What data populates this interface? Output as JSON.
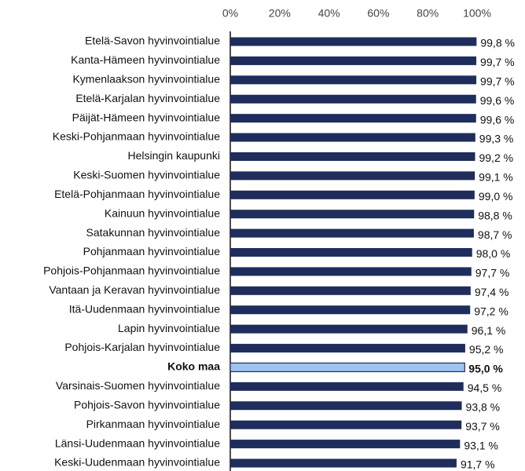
{
  "chart_data": {
    "type": "bar",
    "orientation": "horizontal",
    "categories": [
      "Etelä-Savon hyvinvointialue",
      "Kanta-Hämeen hyvinvointialue",
      "Kymenlaakson hyvinvointialue",
      "Etelä-Karjalan hyvinvointialue",
      "Päijät-Hämeen hyvinvointialue",
      "Keski-Pohjanmaan hyvinvointialue",
      "Helsingin kaupunki",
      "Keski-Suomen hyvinvointialue",
      "Etelä-Pohjanmaan hyvinvointialue",
      "Kainuun hyvinvointialue",
      "Satakunnan hyvinvointialue",
      "Pohjanmaan hyvinvointialue",
      "Pohjois-Pohjanmaan hyvinvointialue",
      "Vantaan ja Keravan hyvinvointialue",
      "Itä-Uudenmaan hyvinvointialue",
      "Lapin hyvinvointialue",
      "Pohjois-Karjalan hyvinvointialue",
      "Koko maa",
      "Varsinais-Suomen hyvinvointialue",
      "Pohjois-Savon hyvinvointialue",
      "Pirkanmaan hyvinvointialue",
      "Länsi-Uudenmaan hyvinvointialue",
      "Keski-Uudenmaan hyvinvointialue"
    ],
    "values": [
      99.8,
      99.7,
      99.7,
      99.6,
      99.6,
      99.3,
      99.2,
      99.1,
      99.0,
      98.8,
      98.7,
      98.0,
      97.7,
      97.4,
      97.2,
      96.1,
      95.2,
      95.0,
      94.5,
      93.8,
      93.7,
      93.1,
      91.7
    ],
    "value_labels": [
      "99,8 %",
      "99,7 %",
      "99,7 %",
      "99,6 %",
      "99,6 %",
      "99,3 %",
      "99,2 %",
      "99,1 %",
      "99,0 %",
      "98,8 %",
      "98,7 %",
      "98,0 %",
      "97,7 %",
      "97,4 %",
      "97,2 %",
      "96,1 %",
      "95,2 %",
      "95,0 %",
      "94,5 %",
      "93,8 %",
      "93,7 %",
      "93,1 %",
      "91,7 %"
    ],
    "color": "#1f2d5c",
    "colors": [
      "#1f2d5c",
      "#1f2d5c",
      "#1f2d5c",
      "#1f2d5c",
      "#1f2d5c",
      "#1f2d5c",
      "#1f2d5c",
      "#1f2d5c",
      "#1f2d5c",
      "#1f2d5c",
      "#1f2d5c",
      "#1f2d5c",
      "#1f2d5c",
      "#1f2d5c",
      "#1f2d5c",
      "#1f2d5c",
      "#1f2d5c",
      "#9ec3ee",
      "#1f2d5c",
      "#1f2d5c",
      "#1f2d5c",
      "#1f2d5c",
      "#1f2d5c"
    ],
    "xlim": [
      0,
      100
    ],
    "xticks": [
      {
        "value": 0,
        "label": "0%"
      },
      {
        "value": 20,
        "label": "20%"
      },
      {
        "value": 40,
        "label": "40%"
      },
      {
        "value": 60,
        "label": "60%"
      },
      {
        "value": 80,
        "label": "80%"
      },
      {
        "value": 100,
        "label": "100%"
      }
    ],
    "grid": false
  }
}
